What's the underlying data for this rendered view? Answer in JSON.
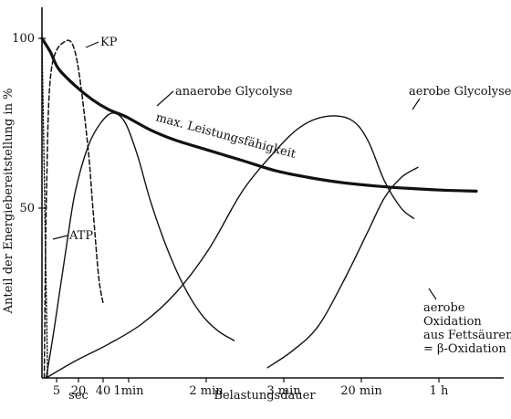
{
  "chart_data": {
    "type": "line",
    "xlabel": "Belastungsdauer",
    "ylabel": "Anteil der Energiebereitstellung in %",
    "y_ticks": [
      {
        "value": 100,
        "label": "100"
      },
      {
        "value": 50,
        "label": "50"
      }
    ],
    "x_ticks": [
      {
        "key": 5,
        "label": "5"
      },
      {
        "key": 20,
        "label": "20"
      },
      {
        "key": 40,
        "label": "40"
      },
      {
        "key": "1min",
        "label": "1min"
      },
      {
        "key": "2min",
        "label": "2 min"
      },
      {
        "key": "3min",
        "label": "3 min"
      },
      {
        "key": "20min",
        "label": "20 min"
      },
      {
        "key": "1h",
        "label": "1 h"
      }
    ],
    "x_unit_note": "sec",
    "y_min": 0,
    "y_max": 100,
    "x_scale": "non-linear (categorical tick positions)",
    "series": [
      {
        "name": "ATP",
        "style": "dotted",
        "points": [
          [
            0,
            100
          ],
          [
            2,
            60
          ],
          [
            3.5,
            30
          ],
          [
            4.5,
            10
          ],
          [
            5,
            0
          ]
        ]
      },
      {
        "name": "KP",
        "style": "dashed",
        "points": [
          [
            2,
            0
          ],
          [
            4,
            55
          ],
          [
            8,
            90
          ],
          [
            20,
            99
          ],
          [
            30,
            95
          ],
          [
            40,
            70
          ],
          [
            45,
            50
          ],
          [
            50,
            30
          ],
          [
            54,
            22
          ]
        ]
      },
      {
        "name": "max. Leistungsfähigkeit",
        "style": "bold",
        "points": [
          [
            0,
            100
          ],
          [
            10,
            96
          ],
          [
            20,
            91
          ],
          [
            40,
            86
          ],
          [
            60,
            82
          ],
          [
            80,
            79
          ],
          [
            100,
            77
          ],
          [
            130,
            73
          ],
          [
            160,
            70
          ],
          [
            200,
            67
          ],
          [
            240,
            64
          ],
          [
            280,
            61
          ],
          [
            320,
            59
          ],
          [
            360,
            57.5
          ],
          [
            400,
            56.5
          ],
          [
            440,
            55.8
          ],
          [
            480,
            55.3
          ],
          [
            520,
            55
          ]
        ]
      },
      {
        "name": "anaerobe Glycolyse",
        "style": "solid",
        "points": [
          [
            5,
            0
          ],
          [
            15,
            15
          ],
          [
            30,
            40
          ],
          [
            40,
            55
          ],
          [
            55,
            68
          ],
          [
            70,
            75
          ],
          [
            85,
            78
          ],
          [
            100,
            75
          ],
          [
            115,
            65
          ],
          [
            130,
            52
          ],
          [
            150,
            38
          ],
          [
            170,
            27
          ],
          [
            190,
            19
          ],
          [
            210,
            14
          ],
          [
            230,
            11
          ]
        ]
      },
      {
        "name": "aerobe Glycolyse",
        "style": "solid",
        "points": [
          [
            5,
            0
          ],
          [
            40,
            5
          ],
          [
            80,
            10
          ],
          [
            120,
            16
          ],
          [
            160,
            25
          ],
          [
            200,
            38
          ],
          [
            240,
            55
          ],
          [
            280,
            67
          ],
          [
            310,
            74
          ],
          [
            340,
            77
          ],
          [
            370,
            76
          ],
          [
            390,
            70
          ],
          [
            410,
            58
          ],
          [
            430,
            50
          ],
          [
            445,
            47
          ]
        ]
      },
      {
        "name": "aerobe Oxidation aus Fettsäuren = β-Oxidation",
        "style": "solid",
        "points": [
          [
            270,
            3
          ],
          [
            300,
            8
          ],
          [
            330,
            15
          ],
          [
            360,
            28
          ],
          [
            390,
            43
          ],
          [
            410,
            53
          ],
          [
            430,
            59
          ],
          [
            450,
            62
          ]
        ]
      }
    ],
    "annotations": {
      "kp": "KP",
      "atp": "ATP",
      "anaerob": "anaerobe Glycolyse",
      "aerob": "aerobe Glycolyse",
      "max": "max. Leistungsfähigkeit",
      "beta_line1": "aerobe",
      "beta_line2": "Oxidation",
      "beta_line3": "aus Fettsäuren",
      "beta_line4": "= β-Oxidation"
    }
  }
}
